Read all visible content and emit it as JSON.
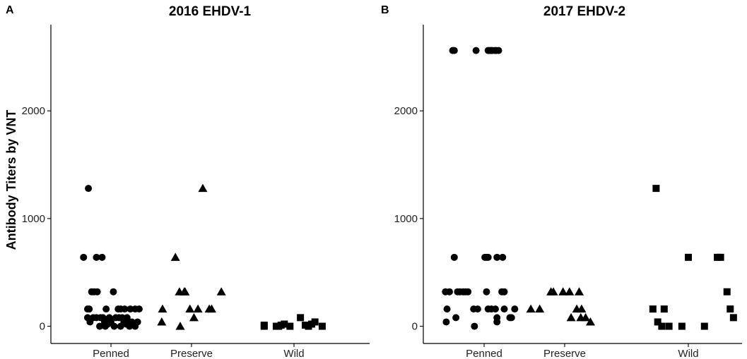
{
  "figure": {
    "ylabel": "Antibody Titers by VNT"
  },
  "chart_data": [
    {
      "panel": "A",
      "type": "scatter",
      "title": "2016 EHDV-1",
      "xlabel": "",
      "ylabel": "Antibody Titers by VNT",
      "categories": [
        "Penned",
        "Preserve",
        "Wild"
      ],
      "yticks": [
        0,
        1000,
        2000
      ],
      "ylim": [
        -160,
        2800
      ],
      "grid": false,
      "markers": {
        "Penned": "circle",
        "Preserve": "triangle",
        "Wild": "square"
      },
      "series": [
        {
          "category": "Penned",
          "points": [
            [
              -0.34,
              640
            ],
            [
              -0.28,
              1280
            ],
            [
              -0.18,
              640
            ],
            [
              -0.11,
              640
            ],
            [
              -0.24,
              320
            ],
            [
              -0.21,
              320
            ],
            [
              -0.17,
              320
            ],
            [
              0.03,
              320
            ],
            [
              -0.29,
              160
            ],
            [
              -0.27,
              160
            ],
            [
              -0.06,
              160
            ],
            [
              0.12,
              160
            ],
            [
              0.17,
              160
            ],
            [
              0.24,
              160
            ],
            [
              0.3,
              160
            ],
            [
              0.35,
              160
            ],
            [
              0.09,
              160
            ],
            [
              -0.29,
              80
            ],
            [
              -0.22,
              80
            ],
            [
              -0.18,
              80
            ],
            [
              -0.13,
              80
            ],
            [
              -0.1,
              80
            ],
            [
              -0.02,
              80
            ],
            [
              0.06,
              80
            ],
            [
              0.1,
              80
            ],
            [
              0.14,
              80
            ],
            [
              0.2,
              80
            ],
            [
              -0.26,
              40
            ],
            [
              -0.08,
              40
            ],
            [
              0.0,
              40
            ],
            [
              0.16,
              40
            ],
            [
              0.26,
              40
            ],
            [
              0.33,
              40
            ],
            [
              0.22,
              40
            ],
            [
              -0.04,
              20
            ],
            [
              0.28,
              20
            ],
            [
              0.19,
              20
            ],
            [
              -0.14,
              0
            ],
            [
              -0.07,
              0
            ],
            [
              0.04,
              0
            ],
            [
              0.12,
              0
            ],
            [
              0.23,
              0
            ],
            [
              0.3,
              0
            ]
          ]
        },
        {
          "category": "Preserve",
          "points": [
            [
              -0.36,
              160
            ],
            [
              -0.37,
              40
            ],
            [
              -0.2,
              640
            ],
            [
              -0.15,
              320
            ],
            [
              -0.14,
              0
            ],
            [
              -0.09,
              320
            ],
            [
              -0.08,
              320
            ],
            [
              -0.02,
              160
            ],
            [
              0.03,
              80
            ],
            [
              0.08,
              160
            ],
            [
              0.14,
              1280
            ],
            [
              0.22,
              160
            ],
            [
              0.25,
              160
            ],
            [
              0.37,
              320
            ]
          ]
        },
        {
          "category": "Wild",
          "points": [
            [
              -0.37,
              10
            ],
            [
              -0.37,
              0
            ],
            [
              -0.22,
              0
            ],
            [
              -0.19,
              0
            ],
            [
              -0.16,
              10
            ],
            [
              -0.12,
              20
            ],
            [
              -0.05,
              0
            ],
            [
              0.08,
              80
            ],
            [
              0.14,
              10
            ],
            [
              0.18,
              0
            ],
            [
              0.22,
              20
            ],
            [
              0.26,
              40
            ],
            [
              0.35,
              0
            ]
          ]
        }
      ]
    },
    {
      "panel": "B",
      "type": "scatter",
      "title": "2017 EHDV-2",
      "xlabel": "",
      "ylabel": "",
      "categories": [
        "Penned",
        "Preserve",
        "Wild"
      ],
      "yticks": [
        0,
        1000,
        2000
      ],
      "ylim": [
        -160,
        2800
      ],
      "grid": false,
      "markers": {
        "Penned": "circle",
        "Preserve": "triangle",
        "Wild": "square"
      },
      "series": [
        {
          "category": "Penned",
          "points": [
            [
              -0.39,
              2560
            ],
            [
              -0.37,
              2560
            ],
            [
              -0.1,
              2560
            ],
            [
              0.05,
              2560
            ],
            [
              0.07,
              2560
            ],
            [
              0.09,
              2560
            ],
            [
              0.1,
              2560
            ],
            [
              0.13,
              2560
            ],
            [
              0.15,
              2560
            ],
            [
              0.18,
              2560
            ],
            [
              -0.37,
              640
            ],
            [
              0.01,
              640
            ],
            [
              0.03,
              640
            ],
            [
              0.05,
              640
            ],
            [
              0.16,
              640
            ],
            [
              0.23,
              640
            ],
            [
              -0.48,
              320
            ],
            [
              -0.43,
              320
            ],
            [
              -0.33,
              320
            ],
            [
              -0.3,
              320
            ],
            [
              -0.26,
              320
            ],
            [
              -0.23,
              320
            ],
            [
              -0.2,
              320
            ],
            [
              0.03,
              320
            ],
            [
              0.22,
              320
            ],
            [
              0.25,
              320
            ],
            [
              -0.46,
              160
            ],
            [
              -0.13,
              160
            ],
            [
              -0.08,
              160
            ],
            [
              0.05,
              160
            ],
            [
              0.09,
              160
            ],
            [
              0.14,
              160
            ],
            [
              0.25,
              160
            ],
            [
              0.38,
              160
            ],
            [
              -0.35,
              80
            ],
            [
              0.16,
              80
            ],
            [
              0.32,
              80
            ],
            [
              0.34,
              80
            ],
            [
              -0.47,
              40
            ],
            [
              0.16,
              40
            ],
            [
              -0.12,
              0
            ]
          ]
        },
        {
          "category": "Preserve",
          "points": [
            [
              -0.42,
              160
            ],
            [
              -0.31,
              160
            ],
            [
              -0.17,
              320
            ],
            [
              -0.14,
              320
            ],
            [
              -0.02,
              320
            ],
            [
              0.06,
              320
            ],
            [
              0.18,
              320
            ],
            [
              0.15,
              160
            ],
            [
              0.21,
              160
            ],
            [
              0.2,
              80
            ],
            [
              0.26,
              80
            ],
            [
              0.08,
              80
            ],
            [
              0.32,
              40
            ]
          ]
        },
        {
          "category": "Wild",
          "points": [
            [
              -0.44,
              160
            ],
            [
              -0.4,
              1280
            ],
            [
              -0.38,
              40
            ],
            [
              -0.33,
              0
            ],
            [
              -0.3,
              160
            ],
            [
              -0.24,
              0
            ],
            [
              -0.08,
              0
            ],
            [
              0.0,
              640
            ],
            [
              0.36,
              640
            ],
            [
              0.4,
              640
            ],
            [
              0.48,
              320
            ],
            [
              0.52,
              160
            ],
            [
              0.56,
              80
            ],
            [
              0.2,
              0
            ]
          ]
        }
      ]
    }
  ]
}
